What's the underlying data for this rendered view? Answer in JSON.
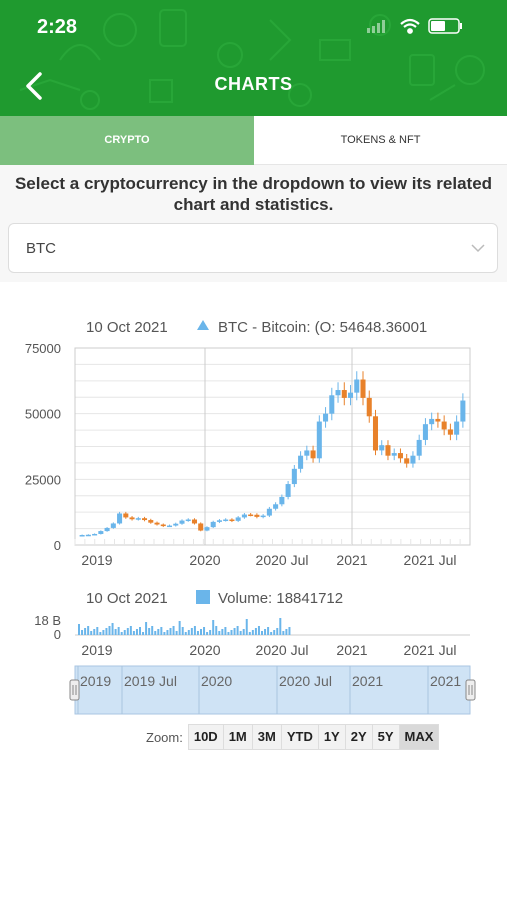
{
  "status_bar": {
    "time": "2:28"
  },
  "header": {
    "title": "CHARTS",
    "back_icon": "chevron-left-icon"
  },
  "tabs": [
    {
      "label": "CRYPTO",
      "active": true
    },
    {
      "label": "TOKENS & NFT",
      "active": false
    }
  ],
  "instruction": "Select a cryptocurrency in the dropdown to view its related chart and statistics.",
  "dropdown": {
    "value": "BTC"
  },
  "colors": {
    "brand": "#1f9a2f",
    "tab_active": "#7cbf7e",
    "up": "#6ab5ea",
    "down": "#e8812a"
  },
  "price_chart": {
    "tooltip_date": "10 Oct 2021",
    "tooltip_series": "BTC - Bitcoin: (O: 54648.36001",
    "y_ticks": [
      "75000",
      "50000",
      "25000",
      "0"
    ],
    "x_labels": [
      "2019",
      "2020",
      "2020 Jul",
      "2021",
      "2021 Jul"
    ]
  },
  "volume_chart": {
    "tooltip_date": "10 Oct 2021",
    "tooltip_series": "Volume: 18841712",
    "y_ticks": [
      "18 B",
      "0"
    ],
    "x_labels": [
      "2019",
      "2020",
      "2020 Jul",
      "2021",
      "2021 Jul"
    ]
  },
  "navigator": {
    "labels": [
      "2019",
      "2019 Jul",
      "2020",
      "2020 Jul",
      "2021",
      "2021"
    ]
  },
  "zoom": {
    "label": "Zoom:",
    "buttons": [
      "10D",
      "1M",
      "3M",
      "YTD",
      "1Y",
      "2Y",
      "5Y",
      "MAX"
    ],
    "selected": "MAX"
  },
  "chart_data": {
    "type": "candlestick",
    "title": "",
    "series": [
      {
        "name": "BTC - Bitcoin",
        "values": [
          3800,
          3900,
          4200,
          5300,
          6500,
          8200,
          12000,
          10500,
          9800,
          10200,
          9500,
          8500,
          7800,
          7200,
          7400,
          8100,
          9300,
          9700,
          8200,
          5500,
          6800,
          8800,
          9400,
          9700,
          9200,
          10500,
          11600,
          11500,
          10700,
          11200,
          13800,
          15500,
          18300,
          23200,
          29000,
          34000,
          36000,
          33000,
          47000,
          50000,
          57000,
          59000,
          56000,
          58000,
          63000,
          56000,
          49000,
          36000,
          38000,
          34000,
          35000,
          33000,
          31000,
          34000,
          40000,
          46000,
          48000,
          47000,
          44000,
          42000,
          47000,
          55000
        ]
      },
      {
        "name": "Volume",
        "values": []
      }
    ],
    "ylim": [
      0,
      75000
    ],
    "xlabel": "",
    "ylabel": ""
  }
}
